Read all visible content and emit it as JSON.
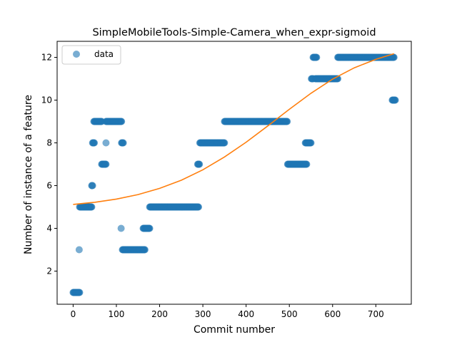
{
  "chart_data": {
    "type": "scatter",
    "title": "SimpleMobileTools-Simple-Camera_when_expr-sigmoid",
    "xlabel": "Commit number",
    "ylabel": "Number of instance of a feature",
    "xlim": [
      -37,
      782
    ],
    "ylim": [
      0.45,
      12.75
    ],
    "xticks": [
      0,
      100,
      200,
      300,
      400,
      500,
      600,
      700
    ],
    "yticks": [
      2,
      4,
      6,
      8,
      10,
      12
    ],
    "legend": {
      "position": "top-left",
      "entries": [
        "data"
      ]
    },
    "colors": {
      "data": "#1f77b4",
      "fit": "#ff7f0e"
    },
    "series": [
      {
        "name": "data",
        "kind": "scatter",
        "segments": [
          [
            0,
            15,
            1
          ],
          [
            14,
            14,
            3
          ],
          [
            15,
            43,
            5
          ],
          [
            43,
            45,
            6
          ],
          [
            45,
            49,
            8
          ],
          [
            48,
            66,
            9
          ],
          [
            66,
            76,
            7
          ],
          [
            76,
            76,
            8
          ],
          [
            76,
            112,
            9
          ],
          [
            111,
            111,
            4
          ],
          [
            112,
            116,
            8
          ],
          [
            114,
            166,
            3
          ],
          [
            162,
            177,
            4
          ],
          [
            177,
            290,
            5
          ],
          [
            288,
            292,
            7
          ],
          [
            293,
            350,
            8
          ],
          [
            350,
            495,
            9
          ],
          [
            496,
            540,
            7
          ],
          [
            537,
            550,
            8
          ],
          [
            551,
            555,
            11
          ],
          [
            555,
            563,
            12
          ],
          [
            560,
            612,
            11
          ],
          [
            612,
            742,
            12
          ],
          [
            738,
            745,
            10
          ]
        ]
      },
      {
        "name": "",
        "kind": "line",
        "x": [
          0,
          50,
          100,
          150,
          200,
          250,
          300,
          350,
          400,
          450,
          500,
          550,
          600,
          650,
          700,
          742
        ],
        "y": [
          5.12,
          5.22,
          5.37,
          5.58,
          5.87,
          6.25,
          6.74,
          7.34,
          8.03,
          8.79,
          9.57,
          10.32,
          10.98,
          11.51,
          11.91,
          12.17
        ]
      }
    ]
  }
}
